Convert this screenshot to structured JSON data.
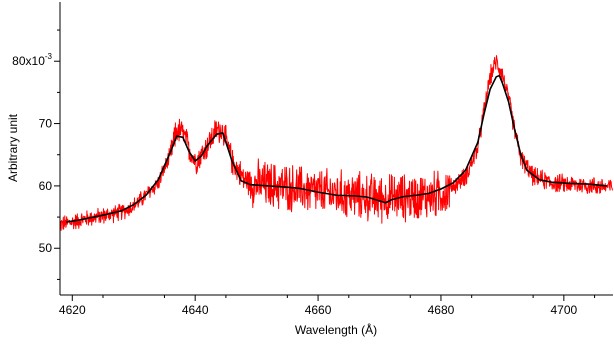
{
  "chart_data": {
    "type": "line",
    "xlabel": "Wavelength (Å)",
    "ylabel": "Arbitrary unit",
    "xlim": [
      4618,
      4708
    ],
    "ylim": [
      0.0425,
      0.0895
    ],
    "grid": false,
    "x_ticks": [
      {
        "value": 4620,
        "label": "4620"
      },
      {
        "value": 4640,
        "label": "4640"
      },
      {
        "value": 4660,
        "label": "4660"
      },
      {
        "value": 4680,
        "label": "4680"
      },
      {
        "value": 4700,
        "label": "4700"
      }
    ],
    "y_ticks": [
      {
        "value": 0.05,
        "label": "50"
      },
      {
        "value": 0.06,
        "label": "60"
      },
      {
        "value": 0.07,
        "label": "70"
      },
      {
        "value": 0.08,
        "label": "80x10",
        "superscript": "-3"
      }
    ],
    "series": [
      {
        "role": "observed spectrum",
        "color": "#ff0000",
        "noise": [
          {
            "from": 4618,
            "to": 4636,
            "amplitude": 0.001
          },
          {
            "from": 4636,
            "to": 4649,
            "amplitude": 0.0016
          },
          {
            "from": 4649,
            "to": 4681.5,
            "amplitude": 0.0028
          },
          {
            "from": 4681.5,
            "to": 4708,
            "amplitude": 0.0011
          }
        ],
        "points": [
          [
            4618,
            0.0538
          ],
          [
            4620,
            0.0542
          ],
          [
            4622,
            0.0547
          ],
          [
            4625,
            0.0552
          ],
          [
            4628,
            0.0558
          ],
          [
            4630,
            0.0568
          ],
          [
            4632,
            0.0585
          ],
          [
            4634,
            0.0605
          ],
          [
            4636,
            0.065
          ],
          [
            4637,
            0.069
          ],
          [
            4638,
            0.0685
          ],
          [
            4639,
            0.066
          ],
          [
            4640,
            0.064
          ],
          [
            4641,
            0.065
          ],
          [
            4642,
            0.0665
          ],
          [
            4643.5,
            0.069
          ],
          [
            4644.5,
            0.069
          ],
          [
            4646,
            0.064
          ],
          [
            4648,
            0.061
          ],
          [
            4650,
            0.0603
          ],
          [
            4655,
            0.0598
          ],
          [
            4660,
            0.059
          ],
          [
            4665,
            0.0585
          ],
          [
            4670,
            0.058
          ],
          [
            4675,
            0.0582
          ],
          [
            4679,
            0.0585
          ],
          [
            4681,
            0.0592
          ],
          [
            4682,
            0.06
          ],
          [
            4684,
            0.0615
          ],
          [
            4686,
            0.066
          ],
          [
            4687,
            0.072
          ],
          [
            4688,
            0.0775
          ],
          [
            4689,
            0.08
          ],
          [
            4690,
            0.078
          ],
          [
            4691,
            0.074
          ],
          [
            4692,
            0.069
          ],
          [
            4693,
            0.0645
          ],
          [
            4695,
            0.0615
          ],
          [
            4698,
            0.0605
          ],
          [
            4702,
            0.0602
          ],
          [
            4705,
            0.06
          ],
          [
            4708,
            0.0598
          ]
        ]
      },
      {
        "role": "smoothed fit",
        "color": "#000000",
        "points": [
          [
            4619,
            0.0542
          ],
          [
            4621,
            0.0545
          ],
          [
            4623,
            0.0549
          ],
          [
            4625,
            0.0553
          ],
          [
            4628,
            0.056
          ],
          [
            4630,
            0.057
          ],
          [
            4632,
            0.0585
          ],
          [
            4634,
            0.061
          ],
          [
            4636,
            0.0655
          ],
          [
            4637,
            0.068
          ],
          [
            4638,
            0.0678
          ],
          [
            4639,
            0.0655
          ],
          [
            4640,
            0.064
          ],
          [
            4641,
            0.0648
          ],
          [
            4642,
            0.0665
          ],
          [
            4643.5,
            0.0683
          ],
          [
            4644.5,
            0.0685
          ],
          [
            4646,
            0.064
          ],
          [
            4647.5,
            0.0608
          ],
          [
            4649,
            0.0602
          ],
          [
            4652,
            0.06
          ],
          [
            4655,
            0.0598
          ],
          [
            4657,
            0.0596
          ],
          [
            4660,
            0.059
          ],
          [
            4663,
            0.0585
          ],
          [
            4666,
            0.0584
          ],
          [
            4668,
            0.0582
          ],
          [
            4670,
            0.0576
          ],
          [
            4671,
            0.0573
          ],
          [
            4672,
            0.0578
          ],
          [
            4674,
            0.0583
          ],
          [
            4676,
            0.0585
          ],
          [
            4678,
            0.0588
          ],
          [
            4680,
            0.0595
          ],
          [
            4682,
            0.0605
          ],
          [
            4684,
            0.0625
          ],
          [
            4686,
            0.067
          ],
          [
            4687,
            0.0715
          ],
          [
            4688,
            0.0755
          ],
          [
            4689,
            0.0775
          ],
          [
            4689.5,
            0.0777
          ],
          [
            4690,
            0.0765
          ],
          [
            4691,
            0.0735
          ],
          [
            4692,
            0.069
          ],
          [
            4693,
            0.065
          ],
          [
            4694,
            0.0625
          ],
          [
            4696,
            0.061
          ],
          [
            4698,
            0.0606
          ],
          [
            4701,
            0.0604
          ],
          [
            4704,
            0.0603
          ],
          [
            4707,
            0.06
          ]
        ]
      }
    ]
  }
}
